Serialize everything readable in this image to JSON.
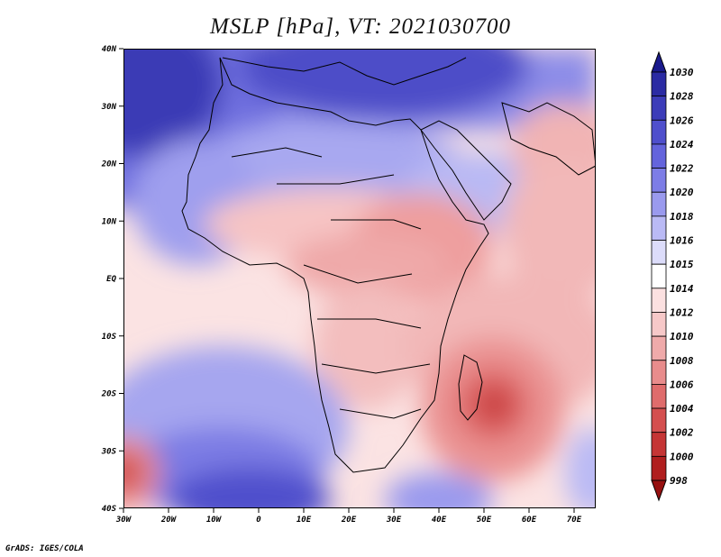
{
  "title": "MSLP [hPa], VT: 2021030700",
  "footer": "GrADS: IGES/COLA",
  "map": {
    "variable": "Mean sea level pressure",
    "units": "hPa",
    "valid_time": "2021030700",
    "lat_labels": [
      "40N",
      "30N",
      "20N",
      "10N",
      "EQ",
      "10S",
      "20S",
      "30S",
      "40S"
    ],
    "lon_labels": [
      "30W",
      "20W",
      "10W",
      "0",
      "10E",
      "20E",
      "30E",
      "40E",
      "50E",
      "60E",
      "70E"
    ],
    "features": {
      "subtropical_high_north_atlantic": "north-west Atlantic, >1028",
      "subtropical_high_south_atlantic": "south Atlantic, ~1022-1026",
      "low_madagascar": "east of Madagascar, ~1000",
      "low_south_west": "south-west corner, ~1002"
    }
  },
  "colorbar": {
    "levels": [
      "1030",
      "1028",
      "1026",
      "1024",
      "1022",
      "1020",
      "1018",
      "1016",
      "1015",
      "1014",
      "1012",
      "1010",
      "1008",
      "1006",
      "1004",
      "1002",
      "1000",
      "998"
    ],
    "colors": [
      "#1a1a8c",
      "#2b2ba3",
      "#3c3cb9",
      "#4f4fcc",
      "#6464dc",
      "#7d7de6",
      "#9a9aee",
      "#babaf5",
      "#dcdcfa",
      "#ffffff",
      "#fbe0e0",
      "#f6c8c8",
      "#efaaaa",
      "#e88c8c",
      "#df6c6c",
      "#d44f4f",
      "#c53535",
      "#b01e1e",
      "#961010"
    ]
  }
}
